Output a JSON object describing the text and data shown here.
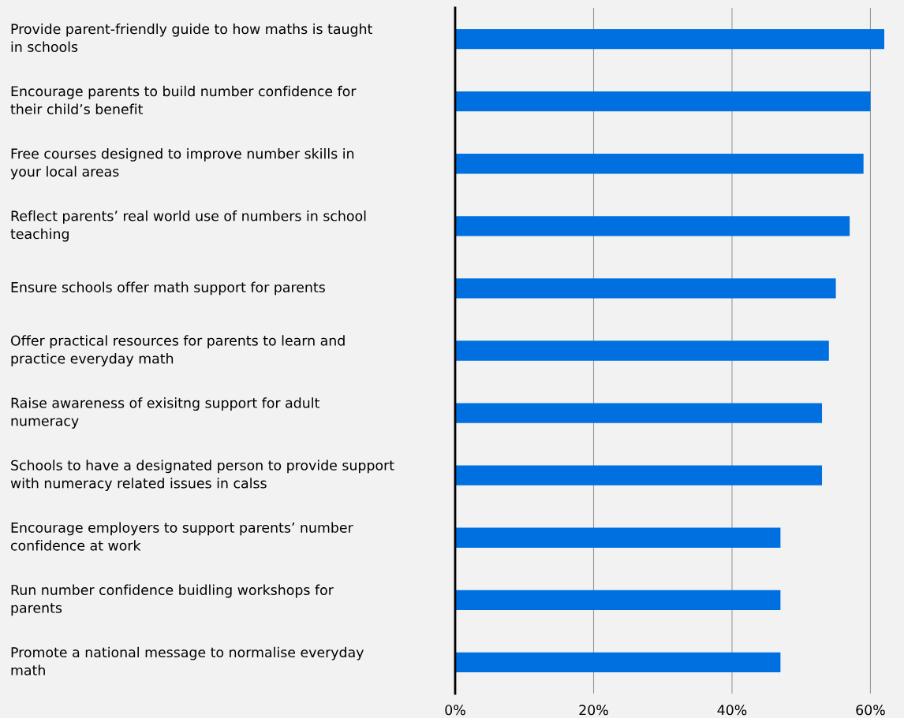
{
  "chart_data": {
    "type": "bar",
    "orientation": "horizontal",
    "color": "#0070e0",
    "categories": [
      "Provide parent-friendly guide to how maths is taught\nin schools",
      "Encourage parents to build number confidence for\ntheir child’s benefit",
      "Free courses designed to improve number skills in\nyour local areas",
      "Reflect parents’ real world use of numbers in school\nteaching",
      "Ensure schools offer math support for parents",
      "Offer practical resources for parents to learn and\npractice everyday math",
      "Raise awareness of exisitng support for adult\nnumeracy",
      "Schools to have a designated person to provide support\nwith numeracy related issues in calss",
      "Encourage employers to support parents’ number\nconfidence at work",
      "Run number confidence buidling workshops for\nparents",
      "Promote a national message to normalise everyday\nmath"
    ],
    "values": [
      62,
      60,
      59,
      57,
      55,
      54,
      53,
      53,
      47,
      47,
      47
    ],
    "xlim": [
      0,
      62
    ],
    "xticks": [
      {
        "value": 0,
        "label": "0%"
      },
      {
        "value": 20,
        "label": "20%"
      },
      {
        "value": 40,
        "label": "40%"
      },
      {
        "value": 60,
        "label": "60%"
      }
    ],
    "grid": "x"
  }
}
